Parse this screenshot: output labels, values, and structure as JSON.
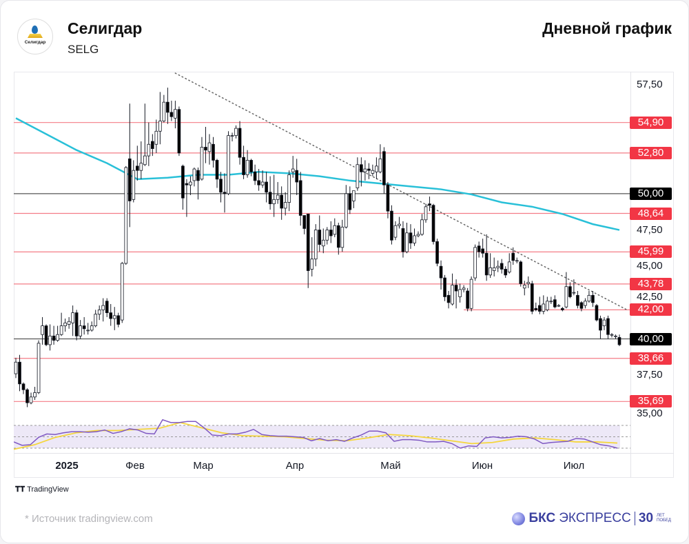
{
  "header": {
    "company": "Селигдар",
    "ticker": "SELG",
    "chart_type": "Дневной график",
    "logo_text": "Селигдар"
  },
  "footer": {
    "tradingview": "TradingView",
    "source": "*  Источник tradingview.com",
    "brand_bold": "БКС",
    "brand_rest": "ЭКСПРЕСС",
    "brand_years": "30",
    "brand_small1": "ЛЕТ",
    "brand_small2": "ПОБЕД"
  },
  "colors": {
    "up": "#ffffff",
    "down": "#000000",
    "wick": "#131722",
    "ma": "#29c0d8",
    "support": "#f23645",
    "round": "#000000",
    "rsi": "#7e57c2",
    "rsi_ma": "#f5d63c",
    "rsi_band": "#ede8f7"
  },
  "chart_data": {
    "type": "candlestick",
    "title": "Селигдар SELG — Дневной график",
    "ylim": [
      34.85,
      58.35
    ],
    "y_ticks": [
      "57,50",
      "47,50",
      "45,00",
      "42,50",
      "37,50",
      "35,00"
    ],
    "y_tick_values": [
      57.5,
      47.5,
      45.0,
      42.5,
      37.5,
      35.0
    ],
    "x_ticks": [
      {
        "label": "2025",
        "bold": true
      },
      {
        "label": "Фев"
      },
      {
        "label": "Мар"
      },
      {
        "label": "Апр"
      },
      {
        "label": "Май"
      },
      {
        "label": "Июн"
      },
      {
        "label": "Июл"
      }
    ],
    "levels": [
      {
        "value": 54.9,
        "label": "54,90",
        "kind": "support"
      },
      {
        "value": 52.8,
        "label": "52,80",
        "kind": "support"
      },
      {
        "value": 50.0,
        "label": "50,00",
        "kind": "round"
      },
      {
        "value": 48.64,
        "label": "48,64",
        "kind": "support"
      },
      {
        "value": 45.99,
        "label": "45,99",
        "kind": "support"
      },
      {
        "value": 43.78,
        "label": "43,78",
        "kind": "support"
      },
      {
        "value": 42.0,
        "label": "42,00",
        "kind": "support",
        "start_index": 118
      },
      {
        "value": 40.0,
        "label": "40,00",
        "kind": "round"
      },
      {
        "value": 38.66,
        "label": "38,66",
        "kind": "support"
      },
      {
        "value": 35.69,
        "label": "35,69",
        "kind": "support"
      }
    ],
    "trendline": {
      "from": [
        42,
        58.3
      ],
      "to": [
        161,
        42.0
      ],
      "style": "dotted"
    },
    "candles_ohlc": [
      [
        37.6,
        38.7,
        37.3,
        38.4
      ],
      [
        38.4,
        38.9,
        36.4,
        36.9
      ],
      [
        36.9,
        37.0,
        36.2,
        36.5
      ],
      [
        36.5,
        36.6,
        35.3,
        35.6
      ],
      [
        35.6,
        36.3,
        35.5,
        36.0
      ],
      [
        36.0,
        36.7,
        35.8,
        36.3
      ],
      [
        36.3,
        39.9,
        36.2,
        39.7
      ],
      [
        40.3,
        41.5,
        39.6,
        40.9
      ],
      [
        40.9,
        41.0,
        39.5,
        39.6
      ],
      [
        39.6,
        41.0,
        39.2,
        40.2
      ],
      [
        40.2,
        40.9,
        39.6,
        39.9
      ],
      [
        39.9,
        40.9,
        39.8,
        40.3
      ],
      [
        40.3,
        41.8,
        40.2,
        40.9
      ],
      [
        40.9,
        41.4,
        40.5,
        41.1
      ],
      [
        41.0,
        41.5,
        40.7,
        41.2
      ],
      [
        41.1,
        42.3,
        40.2,
        41.8
      ],
      [
        41.8,
        42.0,
        39.9,
        40.2
      ],
      [
        40.2,
        41.3,
        40.0,
        40.9
      ],
      [
        40.9,
        41.5,
        40.3,
        40.7
      ],
      [
        40.6,
        41.1,
        40.3,
        40.6
      ],
      [
        40.6,
        41.2,
        40.5,
        40.9
      ],
      [
        40.9,
        42.0,
        40.8,
        41.7
      ],
      [
        41.7,
        42.3,
        41.3,
        42.0
      ],
      [
        42.0,
        42.8,
        41.2,
        42.3
      ],
      [
        42.6,
        42.8,
        41.5,
        41.8
      ],
      [
        41.8,
        42.4,
        40.9,
        41.4
      ],
      [
        41.4,
        42.2,
        40.6,
        41.6
      ],
      [
        41.6,
        41.8,
        40.8,
        41.0
      ],
      [
        41.3,
        45.3,
        41.1,
        45.2
      ],
      [
        45.2,
        51.9,
        45.1,
        51.8
      ],
      [
        52.4,
        56.2,
        47.7,
        49.5
      ],
      [
        49.6,
        52.3,
        49.4,
        51.6
      ],
      [
        51.9,
        53.3,
        50.9,
        51.6
      ],
      [
        51.6,
        53.6,
        51.0,
        52.1
      ],
      [
        52.0,
        56.2,
        51.9,
        52.6
      ],
      [
        52.6,
        54.9,
        51.9,
        53.4
      ],
      [
        53.6,
        54.1,
        52.6,
        53.1
      ],
      [
        53.4,
        55.1,
        52.8,
        54.3
      ],
      [
        54.3,
        57.0,
        53.4,
        55.0
      ],
      [
        55.0,
        56.8,
        54.9,
        56.3
      ],
      [
        56.3,
        57.3,
        54.8,
        55.6
      ],
      [
        55.6,
        56.4,
        55.0,
        55.3
      ],
      [
        55.2,
        56.4,
        54.5,
        55.8
      ],
      [
        55.8,
        56.0,
        52.6,
        52.8
      ],
      [
        51.9,
        52.0,
        48.9,
        49.7
      ],
      [
        50.7,
        51.0,
        48.4,
        50.6
      ],
      [
        50.6,
        51.2,
        49.9,
        50.8
      ],
      [
        50.9,
        51.8,
        50.5,
        51.7
      ],
      [
        51.6,
        51.8,
        49.6,
        50.9
      ],
      [
        51.0,
        53.9,
        50.9,
        53.2
      ],
      [
        53.2,
        54.6,
        52.1,
        53.0
      ],
      [
        52.9,
        54.1,
        52.0,
        53.5
      ],
      [
        53.4,
        53.9,
        51.8,
        52.3
      ],
      [
        52.3,
        52.4,
        50.4,
        51.0
      ],
      [
        51.0,
        51.5,
        49.4,
        50.1
      ],
      [
        50.1,
        51.4,
        48.7,
        50.0
      ],
      [
        50.0,
        54.3,
        49.9,
        54.0
      ],
      [
        54.0,
        54.2,
        53.6,
        54.0
      ],
      [
        54.0,
        54.7,
        53.8,
        54.5
      ],
      [
        54.5,
        55.0,
        52.0,
        52.5
      ],
      [
        52.5,
        53.3,
        51.0,
        51.3
      ],
      [
        51.3,
        53.0,
        51.1,
        52.3
      ],
      [
        52.3,
        52.4,
        51.2,
        51.5
      ],
      [
        51.5,
        52.0,
        50.6,
        50.9
      ],
      [
        50.9,
        51.7,
        50.2,
        50.6
      ],
      [
        50.6,
        51.6,
        50.4,
        50.8
      ],
      [
        50.8,
        51.5,
        49.4,
        50.1
      ],
      [
        50.1,
        51.2,
        48.9,
        49.3
      ],
      [
        49.3,
        51.3,
        48.4,
        49.6
      ],
      [
        49.6,
        50.8,
        49.3,
        49.9
      ],
      [
        49.9,
        50.5,
        48.2,
        49.0
      ],
      [
        49.0,
        50.1,
        48.5,
        49.4
      ],
      [
        49.4,
        51.6,
        48.8,
        51.3
      ],
      [
        51.5,
        52.6,
        51.1,
        51.7
      ],
      [
        51.6,
        52.4,
        49.9,
        50.8
      ],
      [
        50.9,
        51.5,
        47.8,
        48.5
      ],
      [
        48.5,
        48.5,
        47.2,
        47.6
      ],
      [
        48.6,
        48.6,
        43.5,
        44.7
      ],
      [
        44.8,
        47.0,
        44.3,
        45.5
      ],
      [
        45.5,
        47.9,
        45.0,
        47.5
      ],
      [
        47.5,
        48.5,
        46.0,
        46.5
      ],
      [
        46.4,
        47.6,
        45.9,
        46.8
      ],
      [
        46.8,
        47.7,
        46.5,
        47.5
      ],
      [
        47.5,
        48.1,
        46.6,
        47.1
      ],
      [
        47.2,
        48.3,
        47.0,
        47.8
      ],
      [
        47.8,
        48.0,
        45.8,
        46.3
      ],
      [
        46.3,
        48.2,
        46.0,
        47.7
      ],
      [
        47.7,
        50.6,
        47.6,
        50.0
      ],
      [
        50.0,
        50.5,
        48.6,
        48.9
      ],
      [
        49.5,
        50.2,
        49.0,
        50.2
      ],
      [
        50.4,
        52.5,
        50.2,
        52.0
      ],
      [
        52.0,
        52.5,
        50.5,
        51.5
      ],
      [
        51.5,
        52.3,
        50.9,
        51.7
      ],
      [
        51.7,
        52.1,
        51.0,
        51.6
      ],
      [
        51.4,
        52.0,
        51.2,
        51.6
      ],
      [
        51.5,
        52.5,
        51.0,
        51.9
      ],
      [
        51.5,
        53.4,
        51.4,
        52.4
      ],
      [
        52.9,
        53.2,
        50.0,
        50.6
      ],
      [
        50.6,
        50.8,
        48.3,
        48.8
      ],
      [
        48.8,
        49.2,
        46.5,
        46.8
      ],
      [
        47.0,
        48.1,
        46.8,
        47.8
      ],
      [
        47.8,
        48.4,
        47.6,
        47.9
      ],
      [
        47.6,
        48.1,
        45.6,
        46.0
      ],
      [
        46.0,
        48.0,
        45.9,
        47.3
      ],
      [
        47.3,
        47.9,
        46.2,
        46.6
      ],
      [
        46.6,
        47.6,
        46.4,
        47.1
      ],
      [
        47.1,
        47.4,
        47.0,
        47.2
      ],
      [
        47.2,
        48.6,
        47.1,
        48.2
      ],
      [
        48.2,
        49.3,
        48.0,
        49.1
      ],
      [
        49.3,
        49.8,
        48.8,
        49.2
      ],
      [
        49.2,
        49.3,
        46.5,
        46.7
      ],
      [
        46.7,
        46.9,
        45.0,
        45.2
      ],
      [
        45.0,
        45.4,
        43.4,
        44.2
      ],
      [
        44.2,
        44.4,
        42.6,
        42.9
      ],
      [
        43.0,
        43.3,
        42.1,
        42.5
      ],
      [
        42.4,
        44.5,
        42.3,
        43.7
      ],
      [
        43.7,
        44.1,
        42.1,
        43.3
      ],
      [
        42.9,
        43.8,
        42.5,
        43.4
      ],
      [
        43.4,
        43.7,
        43.2,
        43.5
      ],
      [
        43.3,
        43.5,
        41.9,
        42.1
      ],
      [
        42.1,
        44.3,
        41.9,
        44.1
      ],
      [
        44.2,
        46.5,
        44.0,
        46.3
      ],
      [
        46.4,
        46.7,
        45.6,
        46.0
      ],
      [
        46.2,
        46.9,
        45.6,
        45.9
      ],
      [
        45.9,
        47.2,
        44.0,
        44.4
      ],
      [
        44.4,
        45.9,
        44.2,
        44.9
      ],
      [
        44.7,
        45.6,
        44.3,
        44.9
      ],
      [
        44.9,
        45.4,
        44.6,
        45.0
      ],
      [
        45.2,
        45.5,
        44.5,
        44.8
      ],
      [
        44.8,
        45.0,
        44.2,
        44.4
      ],
      [
        44.6,
        45.9,
        44.5,
        45.3
      ],
      [
        45.9,
        46.3,
        45.1,
        45.4
      ],
      [
        45.4,
        45.6,
        45.2,
        45.4
      ],
      [
        45.3,
        45.4,
        43.6,
        43.8
      ],
      [
        43.5,
        44.0,
        43.0,
        43.7
      ],
      [
        43.8,
        44.3,
        43.5,
        43.9
      ],
      [
        43.8,
        44.0,
        41.7,
        41.9
      ],
      [
        42.1,
        42.5,
        41.9,
        42.0
      ],
      [
        42.3,
        42.9,
        41.7,
        41.9
      ],
      [
        41.9,
        43.0,
        41.7,
        42.4
      ],
      [
        42.0,
        42.9,
        41.9,
        42.6
      ],
      [
        42.6,
        42.9,
        42.4,
        42.6
      ],
      [
        42.7,
        43.0,
        42.1,
        42.2
      ],
      [
        42.3,
        42.4,
        42.2,
        42.3
      ],
      [
        42.1,
        42.2,
        41.9,
        42.0
      ],
      [
        42.2,
        44.6,
        42.1,
        43.6
      ],
      [
        43.6,
        43.9,
        42.8,
        42.9
      ],
      [
        43.2,
        44.1,
        43.0,
        43.2
      ],
      [
        43.0,
        43.3,
        42.1,
        42.3
      ],
      [
        42.5,
        42.6,
        41.9,
        42.1
      ],
      [
        42.3,
        42.8,
        42.1,
        42.6
      ],
      [
        42.6,
        43.3,
        42.5,
        43.0
      ],
      [
        43.0,
        43.3,
        42.2,
        42.5
      ],
      [
        42.3,
        42.4,
        41.2,
        41.3
      ],
      [
        41.4,
        41.6,
        40.0,
        40.6
      ],
      [
        40.9,
        41.5,
        40.6,
        41.3
      ],
      [
        41.4,
        41.6,
        40.0,
        40.3
      ],
      [
        40.3,
        40.4,
        40.1,
        40.3
      ],
      [
        40.2,
        40.3,
        40.0,
        40.2
      ],
      [
        40.1,
        40.3,
        39.5,
        39.6
      ]
    ],
    "ma_line": {
      "sample_every": 8,
      "values": [
        55.2,
        54.1,
        53.0,
        52.1,
        51.0,
        51.1,
        51.3,
        51.3,
        51.5,
        51.4,
        51.2,
        50.9,
        50.7,
        50.5,
        50.3,
        49.95,
        49.4,
        49.1,
        48.6,
        47.9,
        47.5
      ]
    },
    "rsi": {
      "upper": 70,
      "middle": 50,
      "lower": 30,
      "values": [
        41,
        35,
        36,
        49,
        55,
        54,
        57,
        59,
        59,
        58,
        59,
        62,
        56,
        59,
        64,
        62,
        56,
        55,
        80,
        75,
        75,
        77,
        77,
        66,
        53,
        52,
        55,
        55,
        58,
        63,
        54,
        52,
        51,
        51,
        50,
        49,
        43,
        47,
        43,
        45,
        42,
        48,
        53,
        60,
        60,
        57,
        42,
        45,
        45,
        44,
        41,
        41,
        42,
        38,
        30,
        34,
        33,
        48,
        50,
        48,
        49,
        51,
        50,
        46,
        38,
        40,
        41,
        42,
        47,
        46,
        41,
        36,
        34,
        30
      ],
      "ma_values": [
        28,
        36,
        49,
        57,
        61,
        61,
        63,
        65,
        75,
        66,
        57,
        52,
        51,
        50,
        47,
        44,
        43,
        48,
        54,
        52,
        48,
        43,
        38,
        40,
        46,
        48,
        45,
        41,
        41,
        39
      ]
    }
  }
}
